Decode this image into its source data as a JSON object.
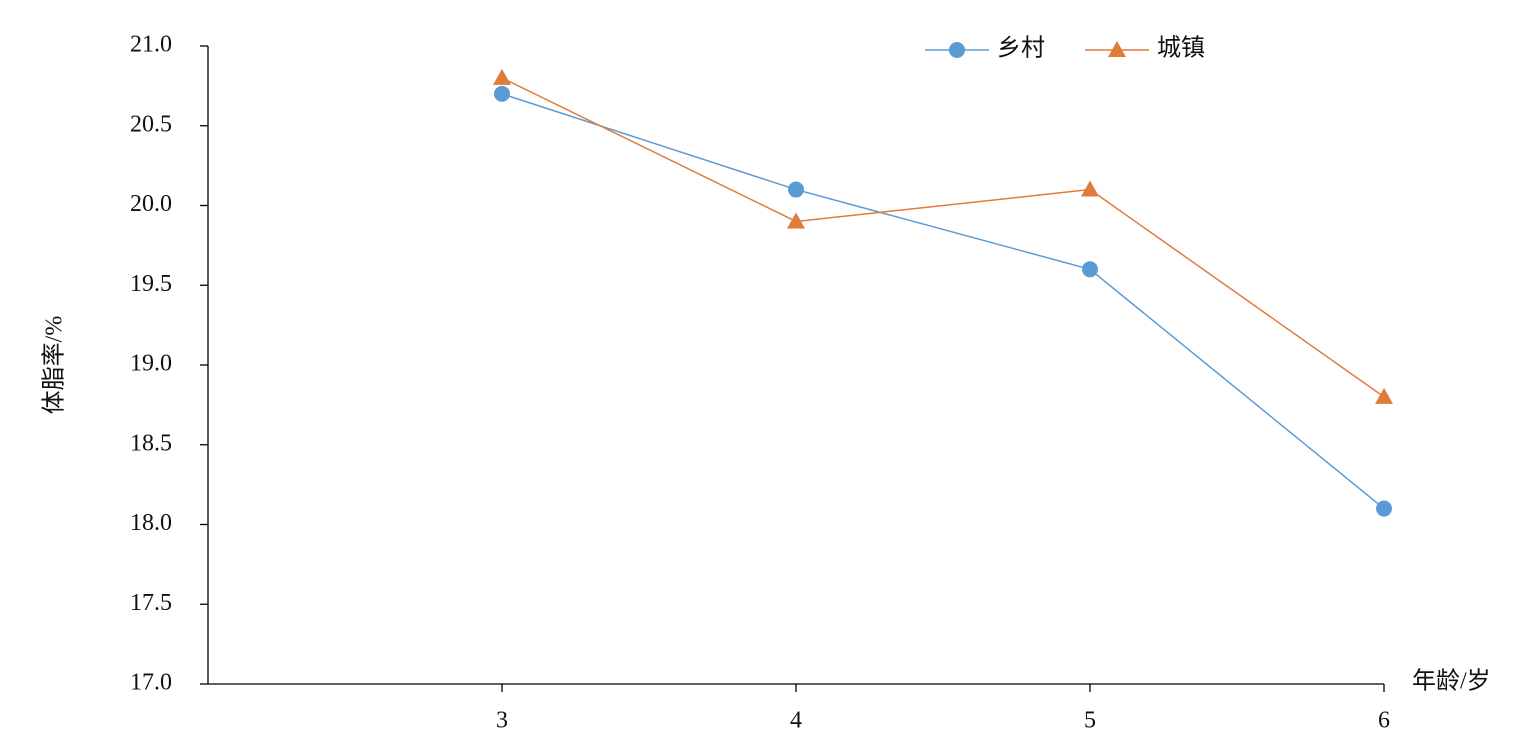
{
  "chart_data": {
    "type": "line",
    "x_label": "年龄/岁",
    "y_label": "体脂率/%",
    "x": [
      3,
      4,
      5,
      6
    ],
    "xlim": [
      2,
      6
    ],
    "xticks": [
      3,
      4,
      5,
      6
    ],
    "ylim": [
      17,
      21
    ],
    "yticks": [
      {
        "value": 17,
        "label": "17.0"
      },
      {
        "value": 17.5,
        "label": "17.5"
      },
      {
        "value": 18,
        "label": "18.0"
      },
      {
        "value": 18.5,
        "label": "18.5"
      },
      {
        "value": 19,
        "label": "19.0"
      },
      {
        "value": 19.5,
        "label": "19.5"
      },
      {
        "value": 20,
        "label": "20.0"
      },
      {
        "value": 20.5,
        "label": "20.5"
      },
      {
        "value": 21,
        "label": "21.0"
      }
    ],
    "grid": false,
    "legend": "top-right",
    "series": [
      {
        "name": "乡村",
        "color": "#5b9bd5",
        "marker": "circle",
        "values": [
          20.7,
          20.1,
          19.6,
          18.1
        ]
      },
      {
        "name": "城镇",
        "color": "#e07b39",
        "marker": "triangle",
        "values": [
          20.8,
          19.9,
          20.1,
          18.8
        ]
      }
    ]
  }
}
